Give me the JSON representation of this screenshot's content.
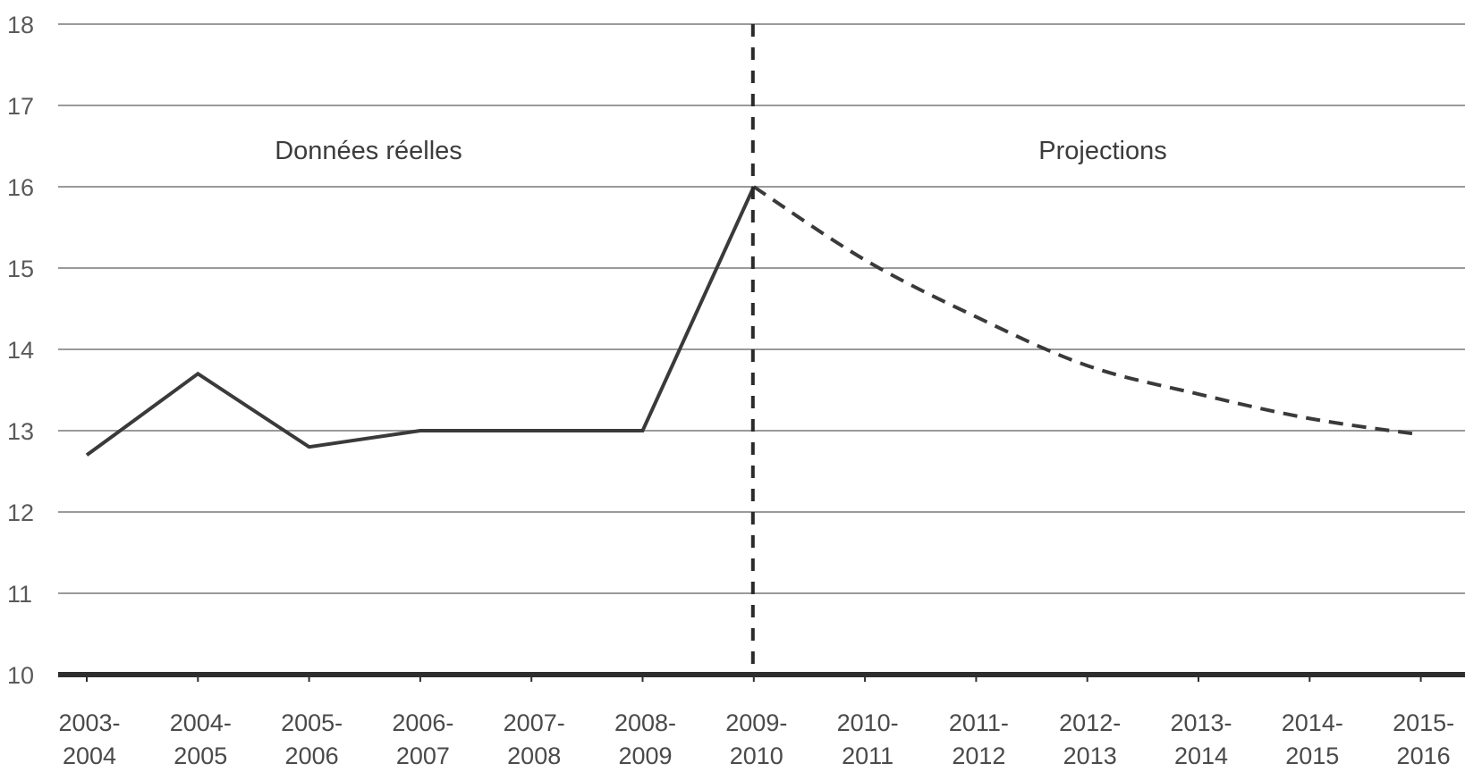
{
  "chart_data": {
    "type": "line",
    "title": "",
    "xlabel": "",
    "ylabel": "",
    "ylim": [
      10,
      18
    ],
    "yticks": [
      10,
      11,
      12,
      13,
      14,
      15,
      16,
      17,
      18
    ],
    "categories": [
      [
        "2003-",
        "2004"
      ],
      [
        "2004-",
        "2005"
      ],
      [
        "2005-",
        "2006"
      ],
      [
        "2006-",
        "2007"
      ],
      [
        "2007-",
        "2008"
      ],
      [
        "2008-",
        "2009"
      ],
      [
        "2009-",
        "2010"
      ],
      [
        "2010-",
        "2011"
      ],
      [
        "2011-",
        "2012"
      ],
      [
        "2012-",
        "2013"
      ],
      [
        "2013-",
        "2014"
      ],
      [
        "2014-",
        "2015"
      ],
      [
        "2015-",
        "2016"
      ]
    ],
    "series": [
      {
        "style": "solid",
        "values": [
          12.7,
          13.7,
          12.8,
          13.0,
          13.0,
          13.0,
          16.0,
          null,
          null,
          null,
          null,
          null,
          null
        ]
      },
      {
        "style": "dashed",
        "values": [
          null,
          null,
          null,
          null,
          null,
          null,
          16.0,
          15.1,
          14.4,
          13.8,
          13.45,
          13.15,
          12.95
        ]
      }
    ],
    "annotations": {
      "actual_label": "Données réelles",
      "projection_label": "Projections"
    },
    "divider_at_category_index": 6,
    "grid": true,
    "colors": {
      "line": "#3a3a3a",
      "grid": "#9a9a9a",
      "axis": "#2e2e2e"
    }
  }
}
